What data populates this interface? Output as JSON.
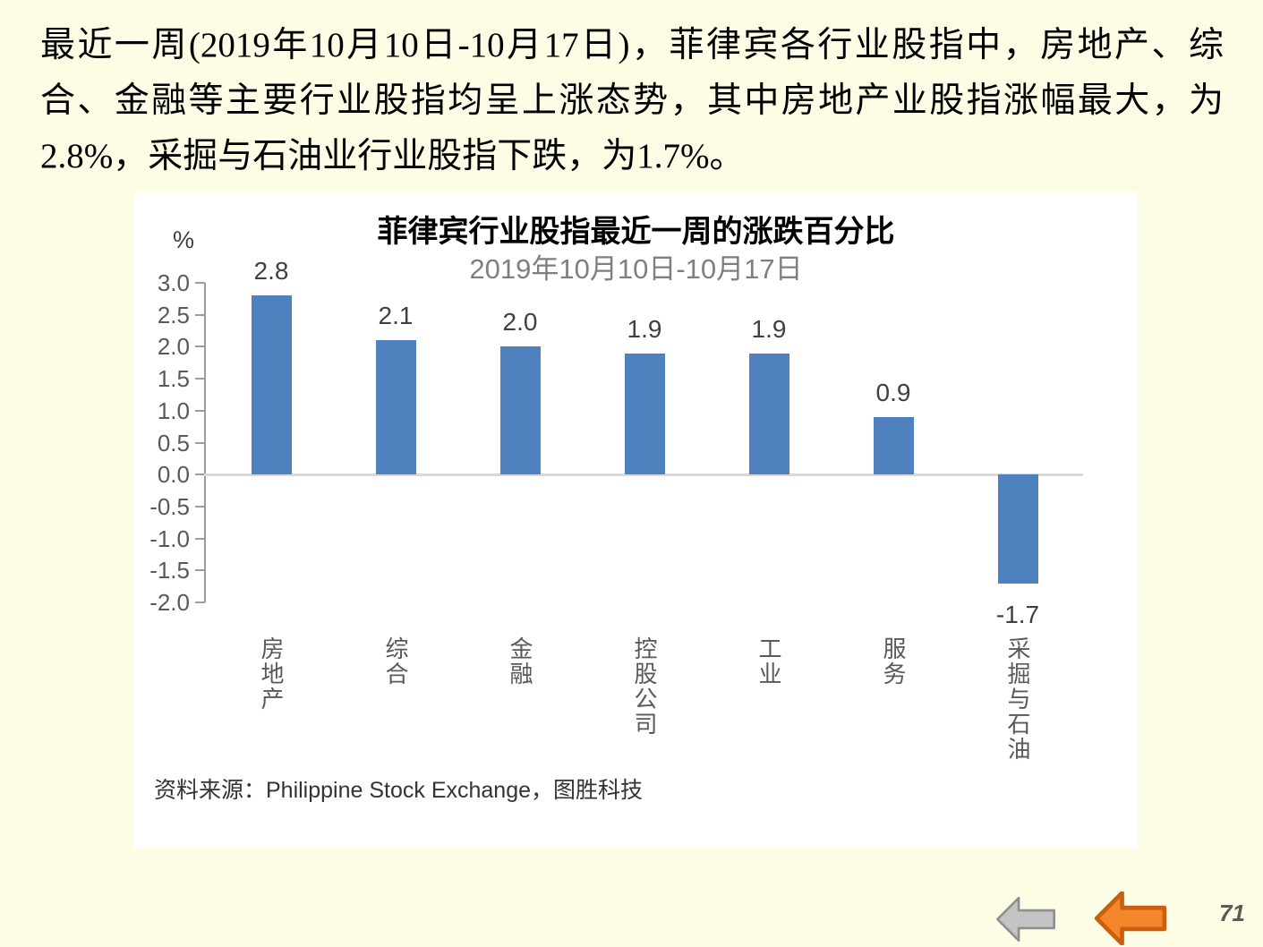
{
  "page": {
    "background_color": "#FDFDE6",
    "paragraph": "最近一周(2019年10月10日-10月17日)，菲律宾各行业股指中，房地产、综合、金融等主要行业股指均呈上涨态势，其中房地产业股指涨幅最大，为2.8%，采掘与石油业行业股指下跌，为1.7%。",
    "page_number": "71"
  },
  "chart": {
    "title": "菲律宾行业股指最近一周的涨跌百分比",
    "subtitle": "2019年10月10日-10月17日",
    "unit_label": "%",
    "source": "资料来源：Philippine  Stock Exchange，图胜科技"
  },
  "chart_data": {
    "type": "bar",
    "title": "菲律宾行业股指最近一周的涨跌百分比",
    "subtitle": "2019年10月10日-10月17日",
    "categories": [
      "房地产",
      "综合",
      "金融",
      "控股公司",
      "工业",
      "服务",
      "采掘与石油"
    ],
    "values": [
      2.8,
      2.1,
      2.0,
      1.9,
      1.9,
      0.9,
      -1.7
    ],
    "xlabel": "",
    "ylabel": "%",
    "ylim": [
      -2.0,
      3.0
    ],
    "ytick_step": 0.5,
    "grid": false,
    "legend": "none",
    "bar_color": "#4E81BD",
    "zero_line_color": "#D9D9D9",
    "axis_color": "#9c9c9c",
    "label_color": "#404040",
    "tick_label_color": "#595959"
  },
  "nav": {
    "gray_arrow": "left-arrow",
    "orange_arrow": "left-arrow"
  }
}
